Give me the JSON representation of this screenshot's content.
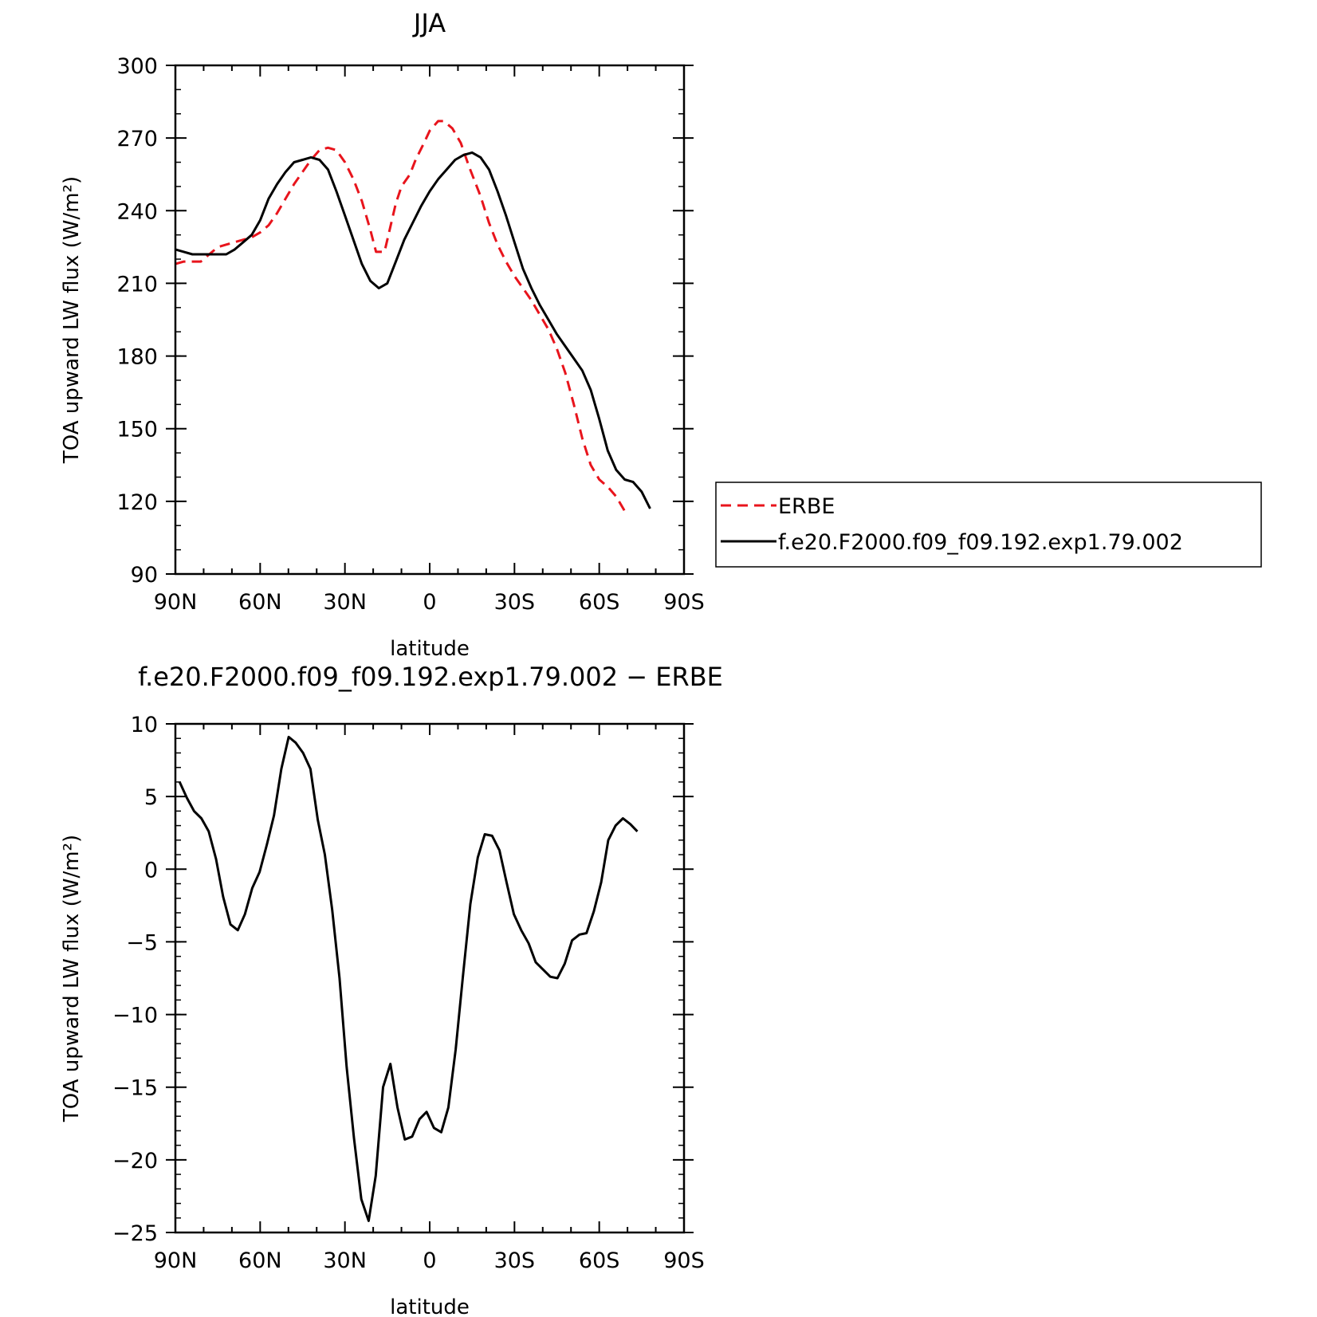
{
  "chart_data": [
    {
      "type": "line",
      "title": "JJA",
      "xlabel": "latitude",
      "ylabel": "TOA upward LW flux (W/m²)",
      "xlim": [
        90,
        -90
      ],
      "ylim": [
        90,
        300
      ],
      "x_ticks": [
        {
          "value": 90,
          "label": "90N"
        },
        {
          "value": 60,
          "label": "60N"
        },
        {
          "value": 30,
          "label": "30N"
        },
        {
          "value": 0,
          "label": "0"
        },
        {
          "value": -30,
          "label": "30S"
        },
        {
          "value": -60,
          "label": "60S"
        },
        {
          "value": -90,
          "label": "90S"
        }
      ],
      "y_ticks": [
        90,
        120,
        150,
        180,
        210,
        240,
        270,
        300
      ],
      "y_minor_step": 10,
      "legend_position": "right",
      "series": [
        {
          "name": "ERBE",
          "color": "#e8141c",
          "dash": "dashed",
          "points": [
            [
              90,
              218
            ],
            [
              87,
              219
            ],
            [
              84,
              219
            ],
            [
              81,
              219
            ],
            [
              78,
              222
            ],
            [
              75,
              225
            ],
            [
              72,
              226
            ],
            [
              69,
              227
            ],
            [
              66,
              228
            ],
            [
              63,
              229
            ],
            [
              60,
              231
            ],
            [
              57,
              234
            ],
            [
              54,
              239
            ],
            [
              51,
              245
            ],
            [
              48,
              251
            ],
            [
              45,
              256
            ],
            [
              42,
              261
            ],
            [
              39,
              265
            ],
            [
              36,
              266
            ],
            [
              33,
              265
            ],
            [
              30,
              260
            ],
            [
              27,
              253
            ],
            [
              24,
              244
            ],
            [
              21,
              232
            ],
            [
              19,
              223
            ],
            [
              16,
              223
            ],
            [
              14,
              233
            ],
            [
              12,
              243
            ],
            [
              10,
              250
            ],
            [
              7,
              255
            ],
            [
              5,
              261
            ],
            [
              2,
              268
            ],
            [
              0,
              273
            ],
            [
              -3,
              277
            ],
            [
              -5,
              277
            ],
            [
              -8,
              274
            ],
            [
              -11,
              268
            ],
            [
              -14,
              258
            ],
            [
              -18,
              246
            ],
            [
              -21,
              235
            ],
            [
              -24,
              226
            ],
            [
              -27,
              219
            ],
            [
              -30,
              213
            ],
            [
              -33,
              208
            ],
            [
              -36,
              203
            ],
            [
              -39,
              197
            ],
            [
              -42,
              191
            ],
            [
              -45,
              183
            ],
            [
              -48,
              173
            ],
            [
              -51,
              160
            ],
            [
              -54,
              146
            ],
            [
              -57,
              135
            ],
            [
              -60,
              129
            ],
            [
              -63,
              126
            ],
            [
              -66,
              122
            ],
            [
              -69,
              116
            ]
          ]
        },
        {
          "name": "f.e20.F2000.f09_f09.192.exp1.79.002",
          "color": "#000000",
          "dash": "solid",
          "points": [
            [
              90,
              224
            ],
            [
              87,
              223
            ],
            [
              84,
              222
            ],
            [
              81,
              222
            ],
            [
              78,
              222
            ],
            [
              75,
              222
            ],
            [
              72,
              222
            ],
            [
              69,
              224
            ],
            [
              66,
              227
            ],
            [
              63,
              230
            ],
            [
              60,
              236
            ],
            [
              57,
              245
            ],
            [
              54,
              251
            ],
            [
              51,
              256
            ],
            [
              48,
              260
            ],
            [
              45,
              261
            ],
            [
              42,
              262
            ],
            [
              39,
              261
            ],
            [
              36,
              257
            ],
            [
              33,
              248
            ],
            [
              30,
              238
            ],
            [
              27,
              228
            ],
            [
              24,
              218
            ],
            [
              21,
              211
            ],
            [
              18,
              208
            ],
            [
              15,
              210
            ],
            [
              12,
              219
            ],
            [
              9,
              228
            ],
            [
              6,
              235
            ],
            [
              3,
              242
            ],
            [
              0,
              248
            ],
            [
              -3,
              253
            ],
            [
              -6,
              257
            ],
            [
              -9,
              261
            ],
            [
              -12,
              263
            ],
            [
              -15,
              264
            ],
            [
              -18,
              262
            ],
            [
              -21,
              257
            ],
            [
              -24,
              248
            ],
            [
              -27,
              238
            ],
            [
              -30,
              227
            ],
            [
              -33,
              216
            ],
            [
              -36,
              208
            ],
            [
              -39,
              201
            ],
            [
              -42,
              195
            ],
            [
              -45,
              189
            ],
            [
              -48,
              184
            ],
            [
              -51,
              179
            ],
            [
              -54,
              174
            ],
            [
              -57,
              166
            ],
            [
              -60,
              154
            ],
            [
              -63,
              141
            ],
            [
              -66,
              133
            ],
            [
              -69,
              129
            ],
            [
              -72,
              128
            ],
            [
              -75,
              124
            ],
            [
              -78,
              117
            ]
          ]
        }
      ]
    },
    {
      "type": "line",
      "title": "f.e20.F2000.f09_f09.192.exp1.79.002 − ERBE",
      "xlabel": "latitude",
      "ylabel": "TOA upward LW flux (W/m²)",
      "xlim": [
        90,
        -90
      ],
      "ylim": [
        -25,
        10
      ],
      "x_ticks": [
        {
          "value": 90,
          "label": "90N"
        },
        {
          "value": 60,
          "label": "60N"
        },
        {
          "value": 30,
          "label": "30N"
        },
        {
          "value": 0,
          "label": "0"
        },
        {
          "value": -30,
          "label": "30S"
        },
        {
          "value": -60,
          "label": "60S"
        },
        {
          "value": -90,
          "label": "90S"
        }
      ],
      "y_ticks": [
        {
          "value": 10,
          "label": "10"
        },
        {
          "value": 5,
          "label": "5"
        },
        {
          "value": 0,
          "label": "0"
        },
        {
          "value": -5,
          "label": "−5"
        },
        {
          "value": -10,
          "label": "−10"
        },
        {
          "value": -15,
          "label": "−15"
        },
        {
          "value": -20,
          "label": "−20"
        },
        {
          "value": -25,
          "label": "−25"
        }
      ],
      "y_minor_step": 1,
      "series": [
        {
          "name": "",
          "color": "#000000",
          "dash": "solid",
          "points": [
            [
              88.5,
              6.0
            ],
            [
              85.9,
              4.9
            ],
            [
              83.4,
              4.0
            ],
            [
              80.8,
              3.5
            ],
            [
              78.2,
              2.6
            ],
            [
              75.6,
              0.7
            ],
            [
              73.1,
              -1.9
            ],
            [
              70.5,
              -3.8
            ],
            [
              67.9,
              -4.2
            ],
            [
              65.4,
              -3.1
            ],
            [
              62.8,
              -1.3
            ],
            [
              60.2,
              -0.2
            ],
            [
              57.6,
              1.7
            ],
            [
              55.1,
              3.7
            ],
            [
              52.5,
              6.9
            ],
            [
              49.9,
              9.1
            ],
            [
              47.4,
              8.7
            ],
            [
              44.8,
              8.0
            ],
            [
              42.2,
              6.9
            ],
            [
              39.6,
              3.4
            ],
            [
              37.1,
              1.0
            ],
            [
              34.5,
              -2.8
            ],
            [
              31.9,
              -7.5
            ],
            [
              29.4,
              -13.6
            ],
            [
              26.8,
              -18.5
            ],
            [
              24.2,
              -22.7
            ],
            [
              21.6,
              -24.2
            ],
            [
              19.1,
              -21.1
            ],
            [
              16.5,
              -15.0
            ],
            [
              13.9,
              -13.4
            ],
            [
              11.4,
              -16.4
            ],
            [
              8.8,
              -18.6
            ],
            [
              6.2,
              -18.4
            ],
            [
              3.6,
              -17.2
            ],
            [
              1.1,
              -16.7
            ],
            [
              -1.5,
              -17.8
            ],
            [
              -4.1,
              -18.1
            ],
            [
              -6.6,
              -16.4
            ],
            [
              -9.2,
              -12.4
            ],
            [
              -11.8,
              -7.3
            ],
            [
              -14.4,
              -2.4
            ],
            [
              -17.0,
              0.8
            ],
            [
              -19.5,
              2.4
            ],
            [
              -22.1,
              2.3
            ],
            [
              -24.7,
              1.3
            ],
            [
              -27.2,
              -0.9
            ],
            [
              -29.8,
              -3.1
            ],
            [
              -32.4,
              -4.2
            ],
            [
              -35.0,
              -5.1
            ],
            [
              -37.5,
              -6.4
            ],
            [
              -40.1,
              -6.9
            ],
            [
              -42.7,
              -7.4
            ],
            [
              -45.2,
              -7.5
            ],
            [
              -47.8,
              -6.5
            ],
            [
              -50.4,
              -4.9
            ],
            [
              -53.0,
              -4.5
            ],
            [
              -55.5,
              -4.4
            ],
            [
              -58.1,
              -2.9
            ],
            [
              -60.7,
              -0.9
            ],
            [
              -63.2,
              2.0
            ],
            [
              -65.8,
              3.0
            ],
            [
              -68.4,
              3.5
            ],
            [
              -71.0,
              3.1
            ],
            [
              -73.5,
              2.6
            ]
          ]
        }
      ]
    }
  ]
}
